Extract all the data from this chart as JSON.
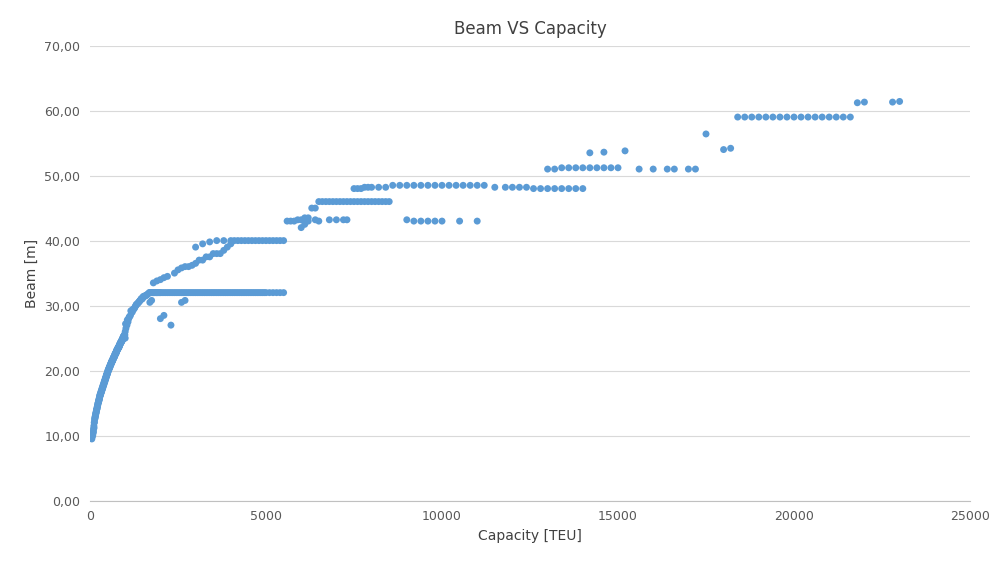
{
  "title": "Beam VS Capacity",
  "xlabel": "Capacity [TEU]",
  "ylabel": "Beam [m]",
  "xlim": [
    0,
    25000
  ],
  "ylim": [
    0,
    70
  ],
  "xticks": [
    0,
    5000,
    10000,
    15000,
    20000,
    25000
  ],
  "yticks": [
    0,
    10,
    20,
    30,
    40,
    50,
    60,
    70
  ],
  "ytick_labels": [
    "0,00",
    "10,00",
    "20,00",
    "30,00",
    "40,00",
    "50,00",
    "60,00",
    "70,00"
  ],
  "xtick_labels": [
    "0",
    "5000",
    "10000",
    "15000",
    "20000",
    "25000"
  ],
  "point_color": "#5b9bd5",
  "background_color": "#ffffff",
  "marker_size": 5,
  "data_points": [
    [
      52,
      9.5
    ],
    [
      60,
      9.8
    ],
    [
      75,
      10.0
    ],
    [
      90,
      10.5
    ],
    [
      100,
      11.0
    ],
    [
      110,
      11.5
    ],
    [
      120,
      12.0
    ],
    [
      130,
      12.5
    ],
    [
      140,
      12.8
    ],
    [
      150,
      13.0
    ],
    [
      160,
      13.2
    ],
    [
      170,
      13.5
    ],
    [
      180,
      13.8
    ],
    [
      190,
      14.0
    ],
    [
      200,
      14.2
    ],
    [
      210,
      14.5
    ],
    [
      220,
      14.7
    ],
    [
      230,
      15.0
    ],
    [
      240,
      15.2
    ],
    [
      250,
      15.3
    ],
    [
      260,
      15.5
    ],
    [
      270,
      15.7
    ],
    [
      280,
      16.0
    ],
    [
      290,
      16.2
    ],
    [
      300,
      16.3
    ],
    [
      310,
      16.5
    ],
    [
      320,
      16.7
    ],
    [
      330,
      16.8
    ],
    [
      340,
      17.0
    ],
    [
      350,
      17.2
    ],
    [
      360,
      17.3
    ],
    [
      370,
      17.5
    ],
    [
      380,
      17.7
    ],
    [
      390,
      17.8
    ],
    [
      400,
      18.0
    ],
    [
      410,
      18.2
    ],
    [
      420,
      18.3
    ],
    [
      430,
      18.5
    ],
    [
      440,
      18.7
    ],
    [
      450,
      18.8
    ],
    [
      460,
      19.0
    ],
    [
      470,
      19.2
    ],
    [
      480,
      19.3
    ],
    [
      490,
      19.5
    ],
    [
      500,
      19.6
    ],
    [
      510,
      19.8
    ],
    [
      520,
      20.0
    ],
    [
      530,
      20.1
    ],
    [
      540,
      20.2
    ],
    [
      550,
      20.4
    ],
    [
      560,
      20.5
    ],
    [
      570,
      20.6
    ],
    [
      580,
      20.8
    ],
    [
      590,
      20.9
    ],
    [
      600,
      21.0
    ],
    [
      610,
      21.2
    ],
    [
      620,
      21.3
    ],
    [
      630,
      21.4
    ],
    [
      640,
      21.5
    ],
    [
      650,
      21.6
    ],
    [
      660,
      21.8
    ],
    [
      670,
      21.9
    ],
    [
      680,
      22.0
    ],
    [
      690,
      22.1
    ],
    [
      700,
      22.2
    ],
    [
      710,
      22.4
    ],
    [
      720,
      22.5
    ],
    [
      730,
      22.6
    ],
    [
      740,
      22.7
    ],
    [
      750,
      22.8
    ],
    [
      760,
      23.0
    ],
    [
      770,
      23.1
    ],
    [
      780,
      23.2
    ],
    [
      790,
      23.3
    ],
    [
      800,
      23.4
    ],
    [
      810,
      23.5
    ],
    [
      820,
      23.6
    ],
    [
      830,
      23.7
    ],
    [
      840,
      23.8
    ],
    [
      850,
      24.0
    ],
    [
      860,
      24.1
    ],
    [
      870,
      24.2
    ],
    [
      880,
      24.3
    ],
    [
      890,
      24.4
    ],
    [
      900,
      24.5
    ],
    [
      910,
      24.6
    ],
    [
      920,
      24.7
    ],
    [
      930,
      24.8
    ],
    [
      940,
      25.0
    ],
    [
      950,
      25.1
    ],
    [
      960,
      25.2
    ],
    [
      970,
      25.3
    ],
    [
      980,
      25.4
    ],
    [
      990,
      25.5
    ],
    [
      1000,
      25.0
    ],
    [
      80,
      10.2
    ],
    [
      95,
      10.6
    ],
    [
      115,
      11.2
    ],
    [
      125,
      12.1
    ],
    [
      145,
      12.7
    ],
    [
      155,
      13.1
    ],
    [
      165,
      13.4
    ],
    [
      175,
      13.6
    ],
    [
      185,
      13.9
    ],
    [
      195,
      14.1
    ],
    [
      205,
      14.4
    ],
    [
      215,
      14.6
    ],
    [
      225,
      14.9
    ],
    [
      235,
      15.1
    ],
    [
      245,
      15.4
    ],
    [
      255,
      15.6
    ],
    [
      265,
      15.8
    ],
    [
      275,
      16.1
    ],
    [
      285,
      16.3
    ],
    [
      295,
      16.4
    ],
    [
      305,
      16.6
    ],
    [
      315,
      16.8
    ],
    [
      325,
      16.9
    ],
    [
      335,
      17.1
    ],
    [
      345,
      17.3
    ],
    [
      355,
      17.4
    ],
    [
      365,
      17.6
    ],
    [
      375,
      17.8
    ],
    [
      385,
      17.9
    ],
    [
      395,
      18.1
    ],
    [
      405,
      18.3
    ],
    [
      415,
      18.4
    ],
    [
      425,
      18.6
    ],
    [
      435,
      18.8
    ],
    [
      445,
      18.9
    ],
    [
      455,
      19.1
    ],
    [
      465,
      19.3
    ],
    [
      475,
      19.4
    ],
    [
      485,
      19.6
    ],
    [
      495,
      19.7
    ],
    [
      505,
      19.9
    ],
    [
      515,
      20.1
    ],
    [
      525,
      20.2
    ],
    [
      535,
      20.3
    ],
    [
      545,
      20.5
    ],
    [
      555,
      20.6
    ],
    [
      565,
      20.7
    ],
    [
      575,
      20.9
    ],
    [
      585,
      21.0
    ],
    [
      595,
      21.1
    ],
    [
      605,
      21.3
    ],
    [
      615,
      21.4
    ],
    [
      625,
      21.5
    ],
    [
      635,
      21.6
    ],
    [
      645,
      21.7
    ],
    [
      655,
      21.9
    ],
    [
      665,
      22.0
    ],
    [
      675,
      22.1
    ],
    [
      685,
      22.2
    ],
    [
      695,
      22.3
    ],
    [
      705,
      22.5
    ],
    [
      715,
      22.6
    ],
    [
      725,
      22.7
    ],
    [
      735,
      22.8
    ],
    [
      745,
      22.9
    ],
    [
      755,
      23.1
    ],
    [
      765,
      23.2
    ],
    [
      775,
      23.3
    ],
    [
      785,
      23.4
    ],
    [
      795,
      23.5
    ],
    [
      805,
      23.6
    ],
    [
      815,
      23.7
    ],
    [
      825,
      23.8
    ],
    [
      835,
      23.9
    ],
    [
      845,
      24.1
    ],
    [
      855,
      24.2
    ],
    [
      865,
      24.3
    ],
    [
      875,
      24.4
    ],
    [
      885,
      24.5
    ],
    [
      895,
      24.6
    ],
    [
      905,
      24.7
    ],
    [
      915,
      24.8
    ],
    [
      925,
      24.9
    ],
    [
      935,
      25.1
    ],
    [
      945,
      25.2
    ],
    [
      955,
      25.3
    ],
    [
      965,
      25.4
    ],
    [
      975,
      25.5
    ],
    [
      1000,
      26.0
    ],
    [
      1020,
      26.5
    ],
    [
      1050,
      27.0
    ],
    [
      1080,
      27.5
    ],
    [
      1100,
      28.0
    ],
    [
      1120,
      28.3
    ],
    [
      1150,
      28.5
    ],
    [
      1180,
      29.0
    ],
    [
      1200,
      29.0
    ],
    [
      1220,
      29.3
    ],
    [
      1250,
      29.5
    ],
    [
      1280,
      29.8
    ],
    [
      1300,
      30.0
    ],
    [
      1320,
      30.2
    ],
    [
      1350,
      30.3
    ],
    [
      1380,
      30.5
    ],
    [
      1400,
      30.6
    ],
    [
      1420,
      30.8
    ],
    [
      1450,
      31.0
    ],
    [
      1480,
      31.0
    ],
    [
      1500,
      31.2
    ],
    [
      1520,
      31.3
    ],
    [
      1550,
      31.5
    ],
    [
      1580,
      31.5
    ],
    [
      1600,
      31.6
    ],
    [
      1620,
      31.7
    ],
    [
      1650,
      31.8
    ],
    [
      1680,
      32.0
    ],
    [
      1700,
      32.0
    ],
    [
      1720,
      32.0
    ],
    [
      1750,
      32.0
    ],
    [
      1780,
      32.0
    ],
    [
      1800,
      32.0
    ],
    [
      1820,
      32.0
    ],
    [
      1850,
      32.0
    ],
    [
      1880,
      32.0
    ],
    [
      1900,
      32.0
    ],
    [
      1920,
      32.0
    ],
    [
      1950,
      32.0
    ],
    [
      1980,
      32.0
    ],
    [
      2000,
      32.0
    ],
    [
      2050,
      32.0
    ],
    [
      2100,
      32.0
    ],
    [
      2150,
      32.0
    ],
    [
      2200,
      32.0
    ],
    [
      2250,
      32.0
    ],
    [
      2300,
      32.0
    ],
    [
      2350,
      32.0
    ],
    [
      2400,
      32.0
    ],
    [
      2450,
      32.0
    ],
    [
      2500,
      32.0
    ],
    [
      2550,
      32.0
    ],
    [
      2600,
      32.0
    ],
    [
      2650,
      32.0
    ],
    [
      2700,
      32.0
    ],
    [
      2750,
      32.0
    ],
    [
      2800,
      32.0
    ],
    [
      2850,
      32.0
    ],
    [
      2900,
      32.0
    ],
    [
      2950,
      32.0
    ],
    [
      3000,
      32.0
    ],
    [
      3050,
      32.0
    ],
    [
      3100,
      32.0
    ],
    [
      3150,
      32.0
    ],
    [
      3200,
      32.0
    ],
    [
      3250,
      32.0
    ],
    [
      3300,
      32.0
    ],
    [
      3350,
      32.0
    ],
    [
      3400,
      32.0
    ],
    [
      3450,
      32.0
    ],
    [
      3500,
      32.0
    ],
    [
      3550,
      32.0
    ],
    [
      3600,
      32.0
    ],
    [
      3650,
      32.0
    ],
    [
      3700,
      32.0
    ],
    [
      3750,
      32.0
    ],
    [
      3800,
      32.0
    ],
    [
      3850,
      32.0
    ],
    [
      3900,
      32.0
    ],
    [
      3950,
      32.0
    ],
    [
      4000,
      32.0
    ],
    [
      4050,
      32.0
    ],
    [
      4100,
      32.0
    ],
    [
      4150,
      32.0
    ],
    [
      4200,
      32.0
    ],
    [
      4250,
      32.0
    ],
    [
      4300,
      32.0
    ],
    [
      4350,
      32.0
    ],
    [
      4400,
      32.0
    ],
    [
      4450,
      32.0
    ],
    [
      4500,
      32.0
    ],
    [
      4550,
      32.0
    ],
    [
      4600,
      32.0
    ],
    [
      4650,
      32.0
    ],
    [
      4700,
      32.0
    ],
    [
      4750,
      32.0
    ],
    [
      4800,
      32.0
    ],
    [
      4850,
      32.0
    ],
    [
      4900,
      32.0
    ],
    [
      4950,
      32.0
    ],
    [
      5000,
      32.0
    ],
    [
      5100,
      32.0
    ],
    [
      5200,
      32.0
    ],
    [
      5300,
      32.0
    ],
    [
      5400,
      32.0
    ],
    [
      5500,
      32.0
    ],
    [
      1010,
      27.2
    ],
    [
      1060,
      27.8
    ],
    [
      1110,
      28.2
    ],
    [
      1160,
      29.2
    ],
    [
      1210,
      29.4
    ],
    [
      1260,
      29.6
    ],
    [
      1310,
      30.1
    ],
    [
      1360,
      30.4
    ],
    [
      1410,
      30.7
    ],
    [
      1460,
      31.1
    ],
    [
      1510,
      31.4
    ],
    [
      1700,
      30.5
    ],
    [
      1750,
      30.8
    ],
    [
      2000,
      28.0
    ],
    [
      2100,
      28.5
    ],
    [
      2300,
      27.0
    ],
    [
      1800,
      33.5
    ],
    [
      1900,
      33.8
    ],
    [
      2000,
      34.0
    ],
    [
      2100,
      34.3
    ],
    [
      2200,
      34.5
    ],
    [
      2400,
      35.0
    ],
    [
      2500,
      35.5
    ],
    [
      2600,
      35.8
    ],
    [
      2700,
      36.0
    ],
    [
      2800,
      36.0
    ],
    [
      2900,
      36.2
    ],
    [
      3000,
      36.5
    ],
    [
      3100,
      37.0
    ],
    [
      3200,
      37.0
    ],
    [
      3300,
      37.5
    ],
    [
      3400,
      37.5
    ],
    [
      3500,
      38.0
    ],
    [
      3600,
      38.0
    ],
    [
      3700,
      38.0
    ],
    [
      3800,
      38.5
    ],
    [
      3900,
      39.0
    ],
    [
      4000,
      39.5
    ],
    [
      4100,
      40.0
    ],
    [
      4200,
      40.0
    ],
    [
      4300,
      40.0
    ],
    [
      4400,
      40.0
    ],
    [
      4500,
      40.0
    ],
    [
      4600,
      40.0
    ],
    [
      4700,
      40.0
    ],
    [
      4800,
      40.0
    ],
    [
      4900,
      40.0
    ],
    [
      5000,
      40.0
    ],
    [
      5100,
      40.0
    ],
    [
      5200,
      40.0
    ],
    [
      5300,
      40.0
    ],
    [
      5400,
      40.0
    ],
    [
      5500,
      40.0
    ],
    [
      3000,
      39.0
    ],
    [
      3200,
      39.5
    ],
    [
      3400,
      39.8
    ],
    [
      3600,
      40.0
    ],
    [
      3800,
      40.0
    ],
    [
      4000,
      40.0
    ],
    [
      2600,
      30.5
    ],
    [
      2700,
      30.8
    ],
    [
      5600,
      43.0
    ],
    [
      5700,
      43.0
    ],
    [
      5800,
      43.0
    ],
    [
      5900,
      43.2
    ],
    [
      6000,
      43.2
    ],
    [
      6100,
      43.5
    ],
    [
      6200,
      43.5
    ],
    [
      6300,
      45.0
    ],
    [
      6400,
      45.0
    ],
    [
      6500,
      46.0
    ],
    [
      6600,
      46.0
    ],
    [
      6700,
      46.0
    ],
    [
      6800,
      46.0
    ],
    [
      6900,
      46.0
    ],
    [
      7000,
      46.0
    ],
    [
      7100,
      46.0
    ],
    [
      7200,
      46.0
    ],
    [
      7300,
      46.0
    ],
    [
      7400,
      46.0
    ],
    [
      7500,
      46.0
    ],
    [
      7600,
      46.0
    ],
    [
      7700,
      46.0
    ],
    [
      7800,
      46.0
    ],
    [
      7900,
      46.0
    ],
    [
      8000,
      46.0
    ],
    [
      8100,
      46.0
    ],
    [
      8200,
      46.0
    ],
    [
      8300,
      46.0
    ],
    [
      8400,
      46.0
    ],
    [
      8500,
      46.0
    ],
    [
      6000,
      42.0
    ],
    [
      6100,
      42.5
    ],
    [
      6200,
      43.0
    ],
    [
      6500,
      43.0
    ],
    [
      6800,
      43.2
    ],
    [
      7000,
      43.2
    ],
    [
      7200,
      43.2
    ],
    [
      7300,
      43.2
    ],
    [
      6400,
      43.2
    ],
    [
      7500,
      48.0
    ],
    [
      7600,
      48.0
    ],
    [
      7700,
      48.0
    ],
    [
      7800,
      48.2
    ],
    [
      7900,
      48.2
    ],
    [
      8000,
      48.2
    ],
    [
      8200,
      48.2
    ],
    [
      8400,
      48.2
    ],
    [
      8600,
      48.5
    ],
    [
      8800,
      48.5
    ],
    [
      9000,
      48.5
    ],
    [
      9200,
      48.5
    ],
    [
      9400,
      48.5
    ],
    [
      9600,
      48.5
    ],
    [
      9800,
      48.5
    ],
    [
      10000,
      48.5
    ],
    [
      10200,
      48.5
    ],
    [
      10400,
      48.5
    ],
    [
      10600,
      48.5
    ],
    [
      10800,
      48.5
    ],
    [
      11000,
      48.5
    ],
    [
      11200,
      48.5
    ],
    [
      9000,
      43.2
    ],
    [
      9200,
      43.0
    ],
    [
      9400,
      43.0
    ],
    [
      9600,
      43.0
    ],
    [
      9800,
      43.0
    ],
    [
      10000,
      43.0
    ],
    [
      10500,
      43.0
    ],
    [
      11000,
      43.0
    ],
    [
      12000,
      48.2
    ],
    [
      12200,
      48.2
    ],
    [
      12400,
      48.2
    ],
    [
      12600,
      48.0
    ],
    [
      12800,
      48.0
    ],
    [
      13000,
      48.0
    ],
    [
      13200,
      48.0
    ],
    [
      13400,
      48.0
    ],
    [
      13600,
      48.0
    ],
    [
      13800,
      48.0
    ],
    [
      14000,
      48.0
    ],
    [
      11500,
      48.2
    ],
    [
      11800,
      48.2
    ],
    [
      13000,
      51.0
    ],
    [
      13200,
      51.0
    ],
    [
      13400,
      51.2
    ],
    [
      13600,
      51.2
    ],
    [
      13800,
      51.2
    ],
    [
      14000,
      51.2
    ],
    [
      14200,
      51.2
    ],
    [
      14400,
      51.2
    ],
    [
      14600,
      51.2
    ],
    [
      14800,
      51.2
    ],
    [
      15000,
      51.2
    ],
    [
      14200,
      53.5
    ],
    [
      14600,
      53.6
    ],
    [
      15200,
      53.8
    ],
    [
      15600,
      51.0
    ],
    [
      16000,
      51.0
    ],
    [
      16400,
      51.0
    ],
    [
      16600,
      51.0
    ],
    [
      17000,
      51.0
    ],
    [
      17200,
      51.0
    ],
    [
      17500,
      56.4
    ],
    [
      18000,
      54.0
    ],
    [
      18200,
      54.2
    ],
    [
      18400,
      59.0
    ],
    [
      18600,
      59.0
    ],
    [
      18800,
      59.0
    ],
    [
      19000,
      59.0
    ],
    [
      19200,
      59.0
    ],
    [
      19400,
      59.0
    ],
    [
      19600,
      59.0
    ],
    [
      19800,
      59.0
    ],
    [
      20000,
      59.0
    ],
    [
      20200,
      59.0
    ],
    [
      20400,
      59.0
    ],
    [
      20600,
      59.0
    ],
    [
      20800,
      59.0
    ],
    [
      21000,
      59.0
    ],
    [
      21200,
      59.0
    ],
    [
      21400,
      59.0
    ],
    [
      21600,
      59.0
    ],
    [
      21800,
      61.2
    ],
    [
      22000,
      61.3
    ],
    [
      22800,
      61.3
    ],
    [
      23000,
      61.4
    ]
  ]
}
